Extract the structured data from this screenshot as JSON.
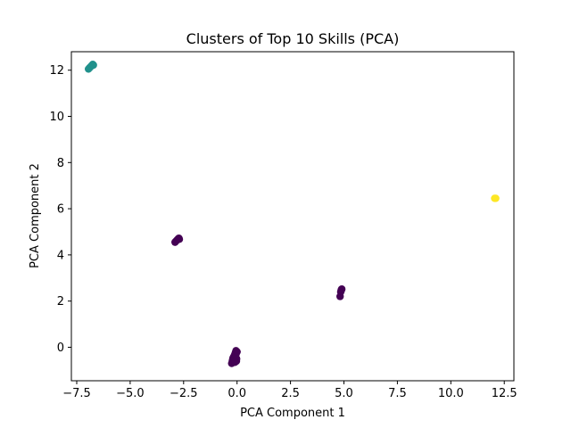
{
  "chart_data": {
    "type": "scatter",
    "title": "Clusters of Top 10 Skills (PCA)",
    "xlabel": "PCA Component 1",
    "ylabel": "PCA Component 2",
    "xlim": [
      -7.75,
      12.95
    ],
    "ylim": [
      -1.45,
      12.8
    ],
    "x_ticks": [
      -7.5,
      -5.0,
      -2.5,
      0.0,
      2.5,
      5.0,
      7.5,
      10.0,
      12.5
    ],
    "x_tick_labels": [
      "−7.5",
      "−5.0",
      "−2.5",
      "0.0",
      "2.5",
      "5.0",
      "7.5",
      "10.0",
      "12.5"
    ],
    "y_ticks": [
      0,
      2,
      4,
      6,
      8,
      10,
      12
    ],
    "y_tick_labels": [
      "0",
      "2",
      "4",
      "6",
      "8",
      "10",
      "12"
    ],
    "grid": false,
    "series": [
      {
        "color": "#440154",
        "points": [
          [
            -2.9,
            4.55
          ],
          [
            -2.85,
            4.6
          ],
          [
            -2.8,
            4.65
          ],
          [
            -2.75,
            4.7
          ],
          [
            -2.72,
            4.72
          ],
          [
            -2.7,
            4.68
          ],
          [
            4.82,
            2.2
          ],
          [
            4.85,
            2.4
          ],
          [
            4.87,
            2.45
          ],
          [
            4.88,
            2.5
          ],
          [
            4.9,
            2.52
          ],
          [
            -0.25,
            -0.7
          ],
          [
            -0.22,
            -0.6
          ],
          [
            -0.2,
            -0.5
          ],
          [
            -0.18,
            -0.45
          ],
          [
            -0.15,
            -0.4
          ],
          [
            -0.12,
            -0.35
          ],
          [
            -0.1,
            -0.3
          ],
          [
            -0.08,
            -0.25
          ],
          [
            -0.06,
            -0.2
          ],
          [
            -0.05,
            -0.15
          ],
          [
            -0.03,
            -0.6
          ],
          [
            -0.02,
            -0.5
          ],
          [
            -0.1,
            -0.65
          ],
          [
            -0.05,
            -0.3
          ],
          [
            0.0,
            -0.2
          ]
        ]
      },
      {
        "color": "#21918c",
        "points": [
          [
            -6.95,
            12.05
          ],
          [
            -6.9,
            12.1
          ],
          [
            -6.85,
            12.15
          ],
          [
            -6.8,
            12.2
          ],
          [
            -6.75,
            12.25
          ],
          [
            -6.72,
            12.22
          ]
        ]
      },
      {
        "color": "#fde725",
        "points": [
          [
            12.05,
            6.45
          ],
          [
            12.1,
            6.45
          ]
        ]
      }
    ]
  }
}
